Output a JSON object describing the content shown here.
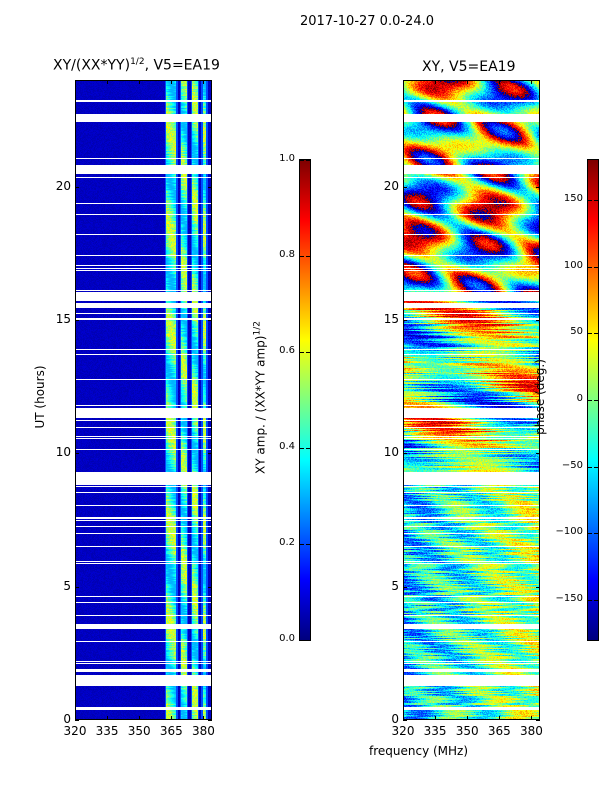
{
  "suptitle": "2017-10-27 0.0-24.0",
  "chart_data": [
    {
      "type": "heatmap",
      "title": "XY/(XX*YY)",
      "title_sup": "1/2",
      "title_suffix": ", V5=EA19",
      "xlabel": "",
      "ylabel": "UT (hours)",
      "xlim": [
        320,
        384
      ],
      "ylim": [
        0,
        24
      ],
      "xticks": [
        320,
        335,
        350,
        365,
        380
      ],
      "yticks": [
        0,
        5,
        10,
        15,
        20
      ],
      "colormap": "jet",
      "colorbar": {
        "label": "XY amp. / (XX*YY amp)",
        "label_sup": "1/2",
        "range": [
          0,
          1
        ],
        "ticks": [
          "0.0",
          "0.2",
          "0.4",
          "0.6",
          "0.8",
          "1.0"
        ],
        "tick_values": [
          0,
          0.2,
          0.4,
          0.6,
          0.8,
          1.0
        ]
      },
      "bright_bands_mhz": [
        [
          362,
          368
        ],
        [
          369,
          373
        ],
        [
          374,
          378
        ],
        [
          379,
          382
        ]
      ],
      "background_value": 0.05,
      "band_value_range": [
        0.3,
        0.65
      ]
    },
    {
      "type": "heatmap",
      "title": "XY, V5=EA19",
      "xlabel": "frequency (MHz)",
      "ylabel": "",
      "xlim": [
        320,
        384
      ],
      "ylim": [
        0,
        24
      ],
      "xticks": [
        320,
        335,
        350,
        365,
        380
      ],
      "yticks": [
        0,
        5,
        10,
        15,
        20
      ],
      "colormap": "jet",
      "colorbar": {
        "label": "phase (deg.)",
        "range": [
          -180,
          180
        ],
        "ticks": [
          "−150",
          "−100",
          "−50",
          "0",
          "50",
          "100",
          "150"
        ],
        "tick_values": [
          -150,
          -100,
          -50,
          0,
          50,
          100,
          150
        ]
      }
    }
  ],
  "flagged_ut_hours": [
    [
      0.4,
      0.5
    ],
    [
      1.3,
      1.7
    ],
    [
      3.45,
      3.6
    ],
    [
      8.85,
      9.3
    ],
    [
      11.35,
      11.7
    ],
    [
      15.5,
      15.65
    ],
    [
      15.8,
      16.0
    ],
    [
      20.5,
      20.8
    ],
    [
      22.45,
      22.7
    ],
    [
      23.2,
      23.25
    ]
  ]
}
